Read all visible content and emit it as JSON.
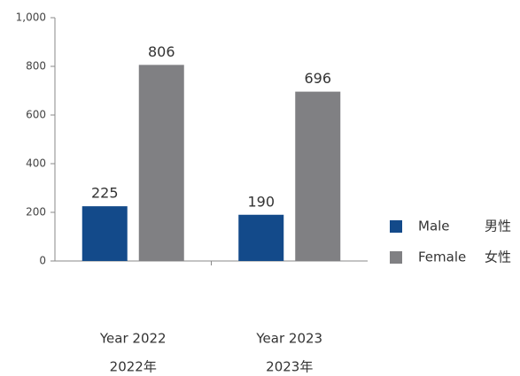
{
  "chart_data": {
    "type": "bar",
    "categories": [
      "Year 2022",
      "Year 2023"
    ],
    "categories_zh": [
      "2022年",
      "2023年"
    ],
    "series": [
      {
        "name": "Male",
        "name_zh": "男性",
        "color": "#134a8a",
        "values": [
          225,
          190
        ]
      },
      {
        "name": "Female",
        "name_zh": "女性",
        "color": "#808083",
        "values": [
          806,
          696
        ]
      }
    ],
    "ylim": [
      0,
      1000
    ],
    "yticks": [
      0,
      200,
      400,
      600,
      800,
      {
        "value": 1000,
        "label": "1,000"
      }
    ],
    "legend": "right"
  }
}
